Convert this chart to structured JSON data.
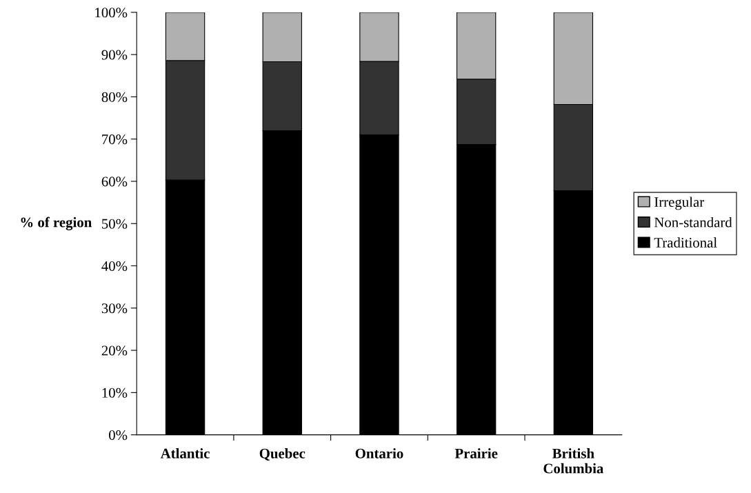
{
  "chart_data": {
    "type": "bar",
    "stacked": true,
    "ylabel": "% of region",
    "categories": [
      "Atlantic",
      "Quebec",
      "Ontario",
      "Prairie",
      "British\nColumbia"
    ],
    "series": [
      {
        "name": "Traditional",
        "color": "#000000",
        "values": [
          60.3,
          72.0,
          71.0,
          68.7,
          57.8
        ]
      },
      {
        "name": "Non-standard",
        "color": "#333333",
        "values": [
          28.3,
          16.3,
          17.4,
          15.5,
          20.4
        ]
      },
      {
        "name": "Irregular",
        "color": "#b0b0b0",
        "values": [
          11.4,
          11.7,
          11.6,
          15.8,
          21.8
        ]
      }
    ],
    "ylim": [
      0,
      100
    ],
    "yticks": [
      {
        "value": 0,
        "label": "0%"
      },
      {
        "value": 10,
        "label": "10%"
      },
      {
        "value": 20,
        "label": "20%"
      },
      {
        "value": 30,
        "label": "30%"
      },
      {
        "value": 40,
        "label": "40%"
      },
      {
        "value": 50,
        "label": "50%"
      },
      {
        "value": 60,
        "label": "60%"
      },
      {
        "value": 70,
        "label": "70%"
      },
      {
        "value": 80,
        "label": "80%"
      },
      {
        "value": 90,
        "label": "90%"
      },
      {
        "value": 100,
        "label": "100%"
      }
    ],
    "grid": false,
    "legend": "right"
  }
}
